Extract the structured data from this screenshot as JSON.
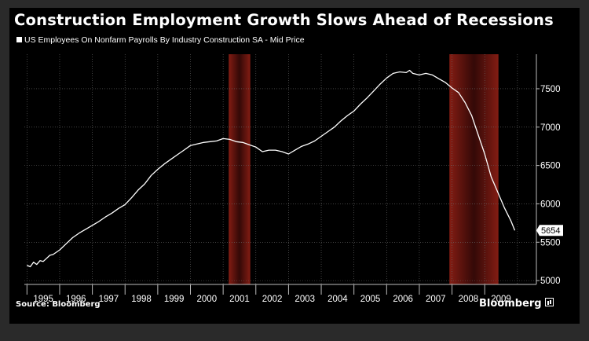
{
  "chart_data": {
    "type": "line",
    "title": "Construction Employment Growth Slows Ahead of Recessions",
    "legend": "US Employees On Nonfarm Payrolls By Industry Construction SA - Mid Price",
    "source": "Source: Bloomberg",
    "brand": "Bloomberg",
    "last_value_label": "5654",
    "x_tick_labels": [
      "1995",
      "1996",
      "1997",
      "1998",
      "1999",
      "2000",
      "2001",
      "2002",
      "2003",
      "2004",
      "2005",
      "2006",
      "2007",
      "2008",
      "2009"
    ],
    "y_ticks": [
      5000,
      5500,
      6000,
      6500,
      7000,
      7500
    ],
    "ylim": [
      4950,
      7950
    ],
    "xlim": [
      1994.92,
      2010.58
    ],
    "grid": true,
    "recessions": [
      {
        "start": 2001.17,
        "end": 2001.83
      },
      {
        "start": 2007.92,
        "end": 2009.42
      }
    ],
    "series": [
      {
        "color": "#ffffff",
        "x": [
          1995.0,
          1995.1,
          1995.2,
          1995.3,
          1995.4,
          1995.5,
          1995.6,
          1995.7,
          1995.8,
          1995.9,
          1996.0,
          1996.2,
          1996.4,
          1996.6,
          1996.8,
          1997.0,
          1997.2,
          1997.4,
          1997.6,
          1997.8,
          1998.0,
          1998.2,
          1998.4,
          1998.6,
          1998.8,
          1999.0,
          1999.2,
          1999.4,
          1999.6,
          1999.8,
          2000.0,
          2000.2,
          2000.4,
          2000.6,
          2000.8,
          2001.0,
          2001.2,
          2001.4,
          2001.6,
          2001.8,
          2002.0,
          2002.2,
          2002.4,
          2002.6,
          2002.8,
          2003.0,
          2003.2,
          2003.4,
          2003.6,
          2003.8,
          2004.0,
          2004.2,
          2004.4,
          2004.6,
          2004.8,
          2005.0,
          2005.2,
          2005.4,
          2005.6,
          2005.8,
          2006.0,
          2006.2,
          2006.4,
          2006.6,
          2006.7,
          2006.8,
          2007.0,
          2007.2,
          2007.4,
          2007.6,
          2007.8,
          2008.0,
          2008.2,
          2008.4,
          2008.6,
          2008.8,
          2009.0,
          2009.2,
          2009.4,
          2009.6,
          2009.8,
          2009.92
        ],
        "values": [
          5200,
          5180,
          5240,
          5210,
          5260,
          5250,
          5290,
          5330,
          5340,
          5370,
          5400,
          5480,
          5560,
          5620,
          5670,
          5720,
          5770,
          5830,
          5880,
          5940,
          5990,
          6080,
          6180,
          6260,
          6370,
          6450,
          6520,
          6580,
          6640,
          6700,
          6760,
          6780,
          6800,
          6810,
          6820,
          6850,
          6840,
          6810,
          6800,
          6770,
          6740,
          6680,
          6700,
          6700,
          6680,
          6650,
          6700,
          6750,
          6780,
          6820,
          6880,
          6940,
          7000,
          7080,
          7150,
          7210,
          7300,
          7380,
          7470,
          7560,
          7640,
          7700,
          7720,
          7710,
          7740,
          7700,
          7680,
          7700,
          7680,
          7630,
          7580,
          7510,
          7450,
          7320,
          7150,
          6900,
          6650,
          6350,
          6150,
          5950,
          5780,
          5654
        ]
      }
    ]
  }
}
